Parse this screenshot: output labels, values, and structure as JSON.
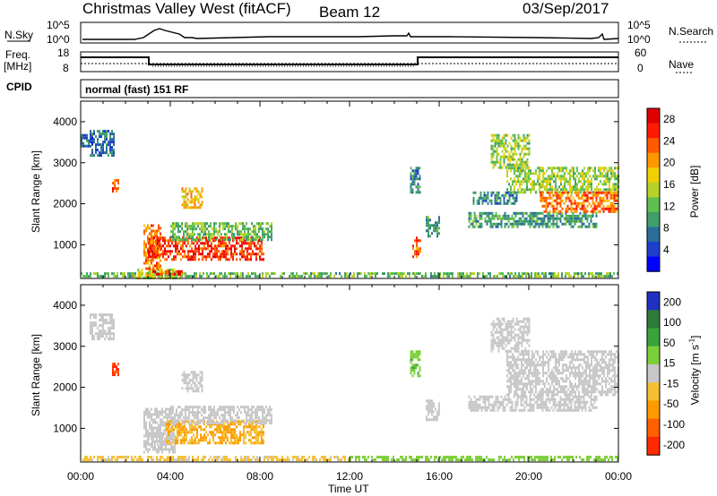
{
  "header": {
    "station": "Christmas Valley West (fitACF)",
    "beam": "Beam 12",
    "date": "03/Sep/2017"
  },
  "panels": {
    "nsky": {
      "label": "N.Sky",
      "ticks": [
        "10^5",
        "10^0"
      ],
      "right_label": "N.Search",
      "right_ticks": [
        "10^5",
        "10^0"
      ]
    },
    "freq": {
      "label": "Freq.",
      "unit": "[MHz]",
      "ticks": [
        "18",
        "8"
      ],
      "right_label": "Nave",
      "right_ticks": [
        "60",
        "0"
      ]
    },
    "cpid": {
      "label": "CPID",
      "mode": "normal (fast) 151 RF"
    }
  },
  "colors": {
    "power_scale": [
      "#0000ff",
      "#1d3fcc",
      "#2b6e9a",
      "#3f9e6a",
      "#5fbf50",
      "#b8d22a",
      "#f0d000",
      "#ff9800",
      "#ff5a00",
      "#ff1a00",
      "#e00000"
    ],
    "velocity_scale": [
      "#2030c0",
      "#2e7b3a",
      "#3aa43a",
      "#7dcf3a",
      "#c8c8c8",
      "#f5c033",
      "#ff9b00",
      "#ff6000",
      "#ff2a00"
    ]
  },
  "chart_data": [
    {
      "type": "heatmap",
      "name": "power",
      "xlabel": "Time UT",
      "ylabel": "Slant Range [km]",
      "x_ticks": [
        "00:00",
        "04:00",
        "08:00",
        "12:00",
        "16:00",
        "20:00",
        "00:00"
      ],
      "xlim_hours": [
        0,
        24
      ],
      "y_ticks": [
        1000,
        2000,
        3000,
        4000
      ],
      "ylim": [
        180,
        4500
      ],
      "colorbar": {
        "label": "Power [dB]",
        "ticks": [
          4,
          8,
          12,
          16,
          20,
          24,
          28
        ],
        "range": [
          0,
          30
        ]
      },
      "regions": [
        {
          "t0": 0.0,
          "t1": 24.0,
          "r0": 200,
          "r1": 330,
          "v": 12
        },
        {
          "t0": 2.3,
          "t1": 4.4,
          "r0": 220,
          "r1": 420,
          "v": 16
        },
        {
          "t0": 3.2,
          "t1": 4.5,
          "r0": 250,
          "r1": 380,
          "v": 26
        },
        {
          "t0": 2.8,
          "t1": 3.6,
          "r0": 420,
          "r1": 1500,
          "v": 22
        },
        {
          "t0": 3.0,
          "t1": 8.2,
          "r0": 620,
          "r1": 1200,
          "v": 25
        },
        {
          "t0": 4.0,
          "t1": 8.5,
          "r0": 1100,
          "r1": 1550,
          "v": 12
        },
        {
          "t0": 4.5,
          "t1": 5.4,
          "r0": 1900,
          "r1": 2400,
          "v": 18
        },
        {
          "t0": 0.4,
          "t1": 1.5,
          "r0": 3200,
          "r1": 3800,
          "v": 7
        },
        {
          "t0": 1.4,
          "t1": 1.7,
          "r0": 2300,
          "r1": 2600,
          "v": 24
        },
        {
          "t0": 0.0,
          "t1": 0.5,
          "r0": 3400,
          "r1": 3700,
          "v": 6
        },
        {
          "t0": 14.8,
          "t1": 15.2,
          "r0": 700,
          "r1": 1200,
          "v": 22
        },
        {
          "t0": 15.4,
          "t1": 16.0,
          "r0": 1200,
          "r1": 1700,
          "v": 10
        },
        {
          "t0": 14.7,
          "t1": 15.1,
          "r0": 2300,
          "r1": 2900,
          "v": 8
        },
        {
          "t0": 17.3,
          "t1": 23.0,
          "r0": 1450,
          "r1": 1800,
          "v": 10
        },
        {
          "t0": 18.3,
          "t1": 20.0,
          "r0": 2900,
          "r1": 3700,
          "v": 14
        },
        {
          "t0": 19.0,
          "t1": 24.0,
          "r0": 2300,
          "r1": 2900,
          "v": 14
        },
        {
          "t0": 20.5,
          "t1": 24.0,
          "r0": 1800,
          "r1": 2300,
          "v": 22
        },
        {
          "t0": 17.5,
          "t1": 19.5,
          "r0": 2000,
          "r1": 2300,
          "v": 8
        }
      ]
    },
    {
      "type": "heatmap",
      "name": "velocity",
      "xlabel": "Time UT",
      "ylabel": "Slant Range [km]",
      "x_ticks": [
        "00:00",
        "04:00",
        "08:00",
        "12:00",
        "16:00",
        "20:00",
        "00:00"
      ],
      "xlim_hours": [
        0,
        24
      ],
      "y_ticks": [
        1000,
        2000,
        3000,
        4000
      ],
      "ylim": [
        180,
        4500
      ],
      "colorbar": {
        "label": "Velocity [m s",
        "label_superscript": "-1",
        "label_close": "]",
        "ticks": [
          200,
          100,
          50,
          15,
          -15,
          -50,
          -100,
          -200
        ],
        "range": [
          -250,
          250
        ]
      },
      "regions": [
        {
          "t0": 0.0,
          "t1": 12.0,
          "r0": 200,
          "r1": 330,
          "v": -40
        },
        {
          "t0": 12.0,
          "t1": 24.0,
          "r0": 200,
          "r1": 330,
          "v": 60
        },
        {
          "t0": 2.8,
          "t1": 4.2,
          "r0": 420,
          "r1": 1500,
          "v": 0
        },
        {
          "t0": 3.8,
          "t1": 8.2,
          "r0": 620,
          "r1": 1200,
          "v": -80
        },
        {
          "t0": 3.0,
          "t1": 4.2,
          "r0": 600,
          "r1": 900,
          "v": 0
        },
        {
          "t0": 4.0,
          "t1": 8.5,
          "r0": 1100,
          "r1": 1550,
          "v": 0
        },
        {
          "t0": 4.5,
          "t1": 5.4,
          "r0": 1900,
          "r1": 2400,
          "v": 0
        },
        {
          "t0": 0.4,
          "t1": 1.5,
          "r0": 3200,
          "r1": 3800,
          "v": 0
        },
        {
          "t0": 1.4,
          "t1": 1.7,
          "r0": 2300,
          "r1": 2600,
          "v": -200
        },
        {
          "t0": 15.4,
          "t1": 16.0,
          "r0": 1200,
          "r1": 1700,
          "v": 0
        },
        {
          "t0": 17.3,
          "t1": 23.0,
          "r0": 1450,
          "r1": 1800,
          "v": 0
        },
        {
          "t0": 18.3,
          "t1": 20.0,
          "r0": 2900,
          "r1": 3700,
          "v": 0
        },
        {
          "t0": 19.0,
          "t1": 24.0,
          "r0": 1800,
          "r1": 2900,
          "v": 0
        },
        {
          "t0": 14.7,
          "t1": 15.1,
          "r0": 2300,
          "r1": 2900,
          "v": 70
        }
      ]
    }
  ]
}
